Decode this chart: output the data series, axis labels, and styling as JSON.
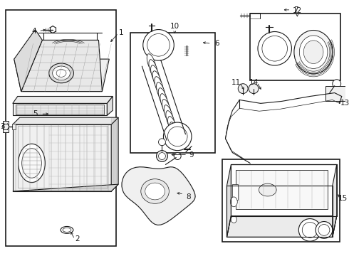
{
  "bg_color": "#ffffff",
  "line_color": "#1a1a1a",
  "gray": "#888888",
  "light_gray": "#cccccc",
  "fig_w": 4.9,
  "fig_h": 3.6,
  "dpi": 100
}
